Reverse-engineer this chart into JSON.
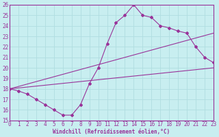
{
  "xlabel": "Windchill (Refroidissement éolien,°C)",
  "bg_color": "#c8eef0",
  "grid_color": "#b0dde0",
  "line_color": "#993399",
  "spine_color": "#993399",
  "ylim": [
    15,
    26
  ],
  "xlim": [
    0,
    23
  ],
  "yticks": [
    15,
    16,
    17,
    18,
    19,
    20,
    21,
    22,
    23,
    24,
    25,
    26
  ],
  "xticks": [
    0,
    1,
    2,
    3,
    4,
    5,
    6,
    7,
    8,
    9,
    10,
    11,
    12,
    13,
    14,
    15,
    16,
    17,
    18,
    19,
    20,
    21,
    22,
    23
  ],
  "line1_x": [
    0,
    1,
    2,
    3,
    4,
    5,
    6,
    7,
    8,
    9,
    10,
    11,
    12,
    13,
    14,
    15,
    16,
    17,
    18,
    19,
    20,
    21,
    22,
    23
  ],
  "line1_y": [
    18.0,
    17.8,
    17.5,
    17.0,
    16.5,
    16.0,
    15.5,
    15.5,
    16.5,
    18.5,
    20.0,
    22.3,
    24.3,
    25.0,
    26.0,
    25.0,
    24.8,
    24.0,
    23.8,
    23.5,
    23.3,
    22.0,
    21.0,
    20.5
  ],
  "line2_x": [
    0,
    23
  ],
  "line2_y": [
    18.0,
    23.3
  ],
  "line3_x": [
    0,
    23
  ],
  "line3_y": [
    18.0,
    20.0
  ],
  "tick_fontsize": 5.5,
  "xlabel_fontsize": 5.5
}
